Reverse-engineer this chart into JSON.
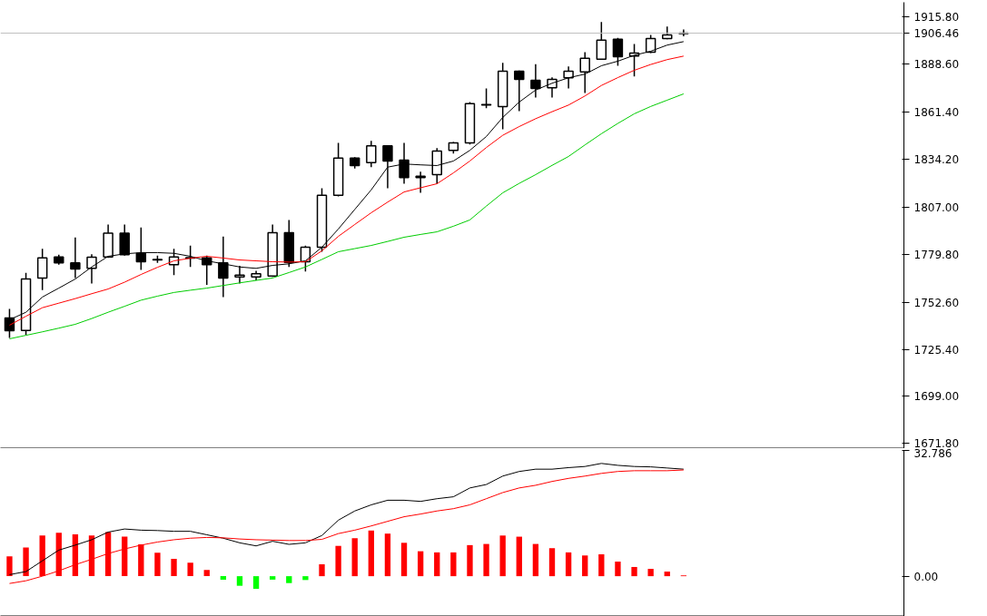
{
  "chart_data": [
    {
      "type": "candlestick",
      "categories": [
        null,
        null,
        null,
        null,
        null,
        null,
        null,
        null,
        null,
        null,
        null,
        null,
        null,
        null,
        null,
        null,
        null,
        null,
        null,
        null,
        null,
        null,
        null,
        null,
        null,
        null,
        null,
        null,
        null,
        null,
        null,
        null,
        null,
        null,
        null,
        null,
        null,
        null,
        null,
        null,
        null,
        null
      ],
      "ohlc": [
        [
          1743.5,
          1748.7,
          1732.1,
          1736.2
        ],
        [
          1736.4,
          1769.3,
          1733.8,
          1765.8
        ],
        [
          1766.4,
          1783.1,
          1759.5,
          1777.9
        ],
        [
          1778.4,
          1779.7,
          1774.0,
          1775.0
        ],
        [
          1775.0,
          1789.6,
          1766.4,
          1771.5
        ],
        [
          1771.9,
          1780.0,
          1763.2,
          1778.3
        ],
        [
          1778.4,
          1797.0,
          1777.9,
          1792.1
        ],
        [
          1792.1,
          1797.0,
          1779.2,
          1779.7
        ],
        [
          1780.5,
          1795.3,
          1771.0,
          1775.7
        ],
        [
          1776.7,
          1779.2,
          1775.0,
          1777.0
        ],
        [
          1774.0,
          1783.1,
          1768.1,
          1778.4
        ],
        [
          1778.0,
          1784.9,
          1772.7,
          1777.8
        ],
        [
          1777.9,
          1779.2,
          1762.4,
          1774.0
        ],
        [
          1775.0,
          1790.1,
          1755.5,
          1766.4
        ],
        [
          1767.0,
          1773.3,
          1763.2,
          1768.0
        ],
        [
          1767.0,
          1770.5,
          1765.0,
          1768.8
        ],
        [
          1767.5,
          1797.0,
          1767.0,
          1792.3
        ],
        [
          1792.3,
          1799.6,
          1772.7,
          1775.3
        ],
        [
          1775.7,
          1784.9,
          1770.1,
          1784.0
        ],
        [
          1784.0,
          1817.7,
          1781.4,
          1813.7
        ],
        [
          1813.7,
          1843.7,
          1813.1,
          1835.0
        ],
        [
          1835.0,
          1835.5,
          1829.0,
          1830.7
        ],
        [
          1832.4,
          1844.9,
          1829.8,
          1842.0
        ],
        [
          1842.0,
          1842.2,
          1817.7,
          1833.3
        ],
        [
          1833.8,
          1843.7,
          1820.3,
          1823.8
        ],
        [
          1823.8,
          1827.2,
          1815.1,
          1824.6
        ],
        [
          1825.5,
          1840.7,
          1820.3,
          1839.0
        ],
        [
          1839.4,
          1844.2,
          1837.6,
          1843.7
        ],
        [
          1843.7,
          1867.0,
          1842.8,
          1866.1
        ],
        [
          1865.3,
          1874.8,
          1863.5,
          1865.6
        ],
        [
          1864.4,
          1889.5,
          1851.5,
          1884.7
        ],
        [
          1884.7,
          1885.0,
          1861.8,
          1880.0
        ],
        [
          1879.5,
          1888.7,
          1869.6,
          1874.8
        ],
        [
          1875.2,
          1881.2,
          1869.6,
          1880.0
        ],
        [
          1880.9,
          1887.4,
          1874.8,
          1884.7
        ],
        [
          1884.3,
          1895.6,
          1872.2,
          1892.1
        ],
        [
          1891.6,
          1912.8,
          1891.2,
          1902.5
        ],
        [
          1903.0,
          1903.7,
          1887.8,
          1893.0
        ],
        [
          1893.3,
          1900.2,
          1881.7,
          1895.0
        ],
        [
          1895.6,
          1905.4,
          1895.0,
          1903.3
        ],
        [
          1903.3,
          1910.2,
          1903.0,
          1905.4
        ],
        [
          1906.2,
          1908.5,
          1904.7,
          1906.46
        ]
      ],
      "series": [
        {
          "type": "line",
          "color": "#000000",
          "values": [
            1742.5,
            1746.8,
            1755.5,
            1760.6,
            1765.8,
            1772.7,
            1778.8,
            1780.2,
            1780.9,
            1780.9,
            1780.5,
            1778.8,
            1776.2,
            1774.5,
            1772.7,
            1771.9,
            1773.6,
            1774.5,
            1776.2,
            1784.0,
            1794.4,
            1805.6,
            1816.8,
            1829.8,
            1831.6,
            1831.1,
            1830.7,
            1833.3,
            1839.4,
            1847.3,
            1858.2,
            1867.0,
            1873.9,
            1877.8,
            1880.9,
            1883.0,
            1887.8,
            1890.4,
            1893.8,
            1896.1,
            1899.6,
            1901.6
          ]
        },
        {
          "type": "line",
          "color": "#ff0000",
          "values": [
            1739.4,
            1744.5,
            1749.4,
            1752.0,
            1754.6,
            1757.4,
            1760.1,
            1764.0,
            1768.4,
            1772.5,
            1776.2,
            1777.7,
            1778.8,
            1777.8,
            1776.7,
            1776.2,
            1775.7,
            1775.5,
            1775.7,
            1781.9,
            1790.2,
            1797.0,
            1803.7,
            1809.8,
            1815.6,
            1818.0,
            1820.3,
            1826.5,
            1833.3,
            1841.0,
            1848.0,
            1853.0,
            1857.5,
            1861.5,
            1865.3,
            1870.5,
            1876.5,
            1881.0,
            1885.2,
            1888.5,
            1891.3,
            1893.3
          ]
        },
        {
          "type": "line",
          "color": "#00cc00",
          "values": [
            1731.6,
            1733.6,
            1735.6,
            1737.7,
            1739.9,
            1743.2,
            1746.8,
            1750.2,
            1753.7,
            1756.0,
            1758.1,
            1759.4,
            1760.6,
            1762.1,
            1763.6,
            1765.0,
            1766.4,
            1769.5,
            1772.7,
            1777.0,
            1781.4,
            1783.2,
            1785.0,
            1787.3,
            1789.7,
            1791.3,
            1792.8,
            1796.0,
            1799.6,
            1807.5,
            1815.1,
            1820.5,
            1825.5,
            1830.8,
            1835.9,
            1842.5,
            1848.9,
            1854.8,
            1860.3,
            1864.5,
            1868.1,
            1871.7
          ]
        }
      ],
      "ylim": [
        1668.8,
        1924.1
      ],
      "yticks": [
        {
          "value": 1671.8,
          "label": "1671.80"
        },
        {
          "value": 1699.0,
          "label": "1699.00"
        },
        {
          "value": 1725.4,
          "label": "1725.40"
        },
        {
          "value": 1752.6,
          "label": "1752.60"
        },
        {
          "value": 1779.8,
          "label": "1779.80"
        },
        {
          "value": 1807.0,
          "label": "1807.00"
        },
        {
          "value": 1834.2,
          "label": "1834.20"
        },
        {
          "value": 1861.4,
          "label": "1861.40"
        },
        {
          "value": 1888.6,
          "label": "1888.60"
        },
        {
          "value": 1915.8,
          "label": "1915.80"
        }
      ],
      "ref_lines": [
        {
          "axis": "y",
          "value": 1906.46,
          "label": "1906.46",
          "color": "#c0c0c0"
        }
      ],
      "tick_labels": "y",
      "grid": false
    },
    {
      "type": "bar",
      "categories": [
        null,
        null,
        null,
        null,
        null,
        null,
        null,
        null,
        null,
        null,
        null,
        null,
        null,
        null,
        null,
        null,
        null,
        null,
        null,
        null,
        null,
        null,
        null,
        null,
        null,
        null,
        null,
        null,
        null,
        null,
        null,
        null,
        null,
        null,
        null,
        null,
        null,
        null,
        null,
        null,
        null,
        null
      ],
      "values": [
        5.2,
        7.5,
        10.6,
        11.3,
        10.9,
        10.6,
        11.5,
        10.3,
        8.3,
        6.1,
        4.5,
        3.5,
        1.6,
        -0.9,
        -2.5,
        -3.3,
        -0.9,
        -1.8,
        -1.0,
        3.1,
        7.9,
        9.9,
        11.9,
        11.1,
        8.7,
        6.5,
        6.2,
        6.2,
        8.1,
        8.4,
        10.6,
        10.3,
        8.4,
        7.3,
        6.2,
        5.4,
        5.7,
        3.8,
        2.4,
        1.9,
        1.2,
        0.2
      ],
      "colors": [
        "#ff0000",
        "#ff0000",
        "#ff0000",
        "#ff0000",
        "#ff0000",
        "#ff0000",
        "#ff0000",
        "#ff0000",
        "#ff0000",
        "#ff0000",
        "#ff0000",
        "#ff0000",
        "#ff0000",
        "#00ff00",
        "#00ff00",
        "#00ff00",
        "#00ff00",
        "#00ff00",
        "#00ff00",
        "#ff0000",
        "#ff0000",
        "#ff0000",
        "#ff0000",
        "#ff0000",
        "#ff0000",
        "#ff0000",
        "#ff0000",
        "#ff0000",
        "#ff0000",
        "#ff0000",
        "#ff0000",
        "#ff0000",
        "#ff0000",
        "#ff0000",
        "#ff0000",
        "#ff0000",
        "#ff0000",
        "#ff0000",
        "#ff0000",
        "#ff0000",
        "#ff0000",
        "#ff0000"
      ],
      "series": [
        {
          "type": "line",
          "color": "#000000",
          "values": [
            0.4,
            1.2,
            4.0,
            6.8,
            8.1,
            9.5,
            11.5,
            12.3,
            12.0,
            11.9,
            11.7,
            11.7,
            10.8,
            9.9,
            8.7,
            7.9,
            9.1,
            8.3,
            8.7,
            10.6,
            14.6,
            17.0,
            18.6,
            19.8,
            19.8,
            19.5,
            20.2,
            20.7,
            23.0,
            23.9,
            26.1,
            27.3,
            27.9,
            27.9,
            28.3,
            28.6,
            29.4,
            28.9,
            28.6,
            28.5,
            28.2,
            27.9
          ]
        },
        {
          "type": "line",
          "color": "#ff0000",
          "values": [
            -1.9,
            -1.2,
            0.0,
            1.4,
            3.0,
            4.4,
            5.9,
            7.1,
            8.1,
            8.9,
            9.5,
            9.9,
            10.1,
            10.0,
            9.7,
            9.5,
            9.4,
            9.3,
            9.3,
            9.6,
            11.1,
            12.0,
            13.1,
            14.3,
            15.5,
            16.2,
            17.0,
            17.6,
            18.6,
            20.2,
            21.8,
            23.0,
            23.7,
            24.7,
            25.5,
            26.1,
            26.8,
            27.3,
            27.5,
            27.5,
            27.5,
            27.7
          ]
        }
      ],
      "ylim": [
        -10.5,
        32.786
      ],
      "yticks": [
        {
          "value": 0,
          "label": "0.00"
        },
        32.786
      ],
      "tick_labels": "y",
      "grid": false
    }
  ]
}
